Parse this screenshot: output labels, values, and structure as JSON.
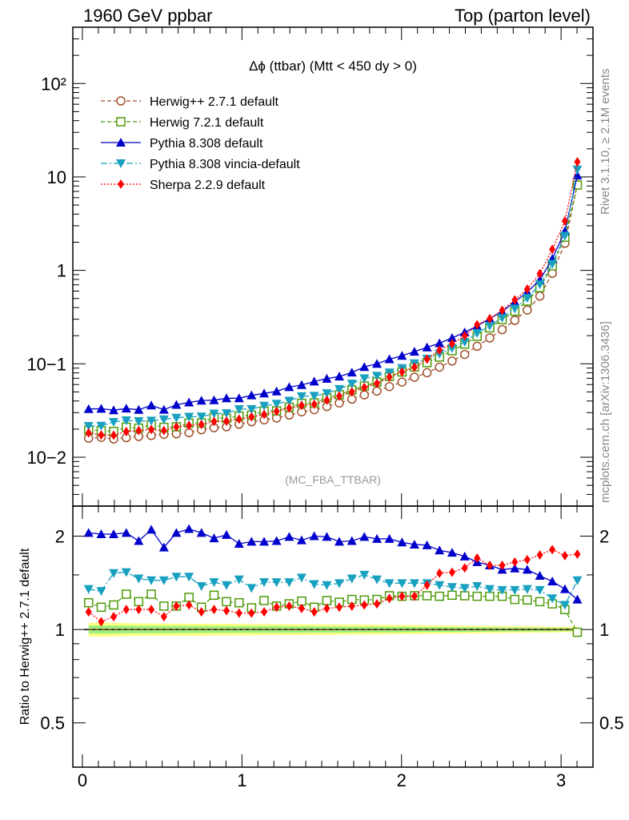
{
  "header": {
    "left": "1960 GeV ppbar",
    "right": "Top (parton level)"
  },
  "side_labels": {
    "rivet": "Rivet 3.1.10, ≥ 2.1M events",
    "mcplots": "mcplots.cern.ch [arXiv:1306.3436]"
  },
  "chart_data": [
    {
      "type": "scatter",
      "title": "Δϕ (ttbar) (Mtt < 450 dy > 0)",
      "watermark": "(MC_FBA_TTBAR)",
      "yscale": "log",
      "ylim": [
        0.003,
        400
      ],
      "xlim": [
        -0.06,
        3.2
      ],
      "ytick_labels": [
        "10−2",
        "10−1",
        "1",
        "10",
        "10²"
      ],
      "legend_placement": "top-left",
      "x": [
        0.039,
        0.118,
        0.196,
        0.275,
        0.353,
        0.432,
        0.511,
        0.589,
        0.668,
        0.746,
        0.825,
        0.903,
        0.982,
        1.06,
        1.139,
        1.217,
        1.296,
        1.374,
        1.453,
        1.532,
        1.61,
        1.689,
        1.767,
        1.846,
        1.924,
        2.003,
        2.081,
        2.16,
        2.238,
        2.317,
        2.396,
        2.474,
        2.553,
        2.631,
        2.71,
        2.788,
        2.867,
        2.945,
        3.024,
        3.102
      ],
      "series": [
        {
          "name": "Herwig++ 2.7.1 default",
          "color": "#a0522d",
          "marker": "circle-open",
          "line": "dashed",
          "values": [
            0.016,
            0.0163,
            0.0157,
            0.0162,
            0.0167,
            0.0171,
            0.0176,
            0.0178,
            0.0183,
            0.0197,
            0.0207,
            0.0212,
            0.0226,
            0.024,
            0.0251,
            0.0263,
            0.0283,
            0.0306,
            0.0323,
            0.0349,
            0.0381,
            0.0419,
            0.0465,
            0.0511,
            0.0571,
            0.0638,
            0.0718,
            0.0803,
            0.0921,
            0.107,
            0.126,
            0.154,
            0.189,
            0.232,
            0.292,
            0.376,
            0.53,
            0.93,
            1.95,
            8.3
          ]
        },
        {
          "name": "Herwig 7.2.1 default",
          "color": "#4e9a06",
          "marker": "square-open",
          "line": "dashed",
          "values": [
            0.0195,
            0.0192,
            0.0189,
            0.021,
            0.0205,
            0.0223,
            0.0209,
            0.0212,
            0.0232,
            0.0233,
            0.0267,
            0.0261,
            0.0276,
            0.0282,
            0.0312,
            0.0314,
            0.0343,
            0.0378,
            0.0382,
            0.0432,
            0.0467,
            0.0524,
            0.0578,
            0.0638,
            0.0733,
            0.0817,
            0.0924,
            0.103,
            0.118,
            0.138,
            0.162,
            0.197,
            0.242,
            0.297,
            0.365,
            0.469,
            0.653,
            1.12,
            2.26,
            8.2
          ]
        },
        {
          "name": "Pythia 8.308 default",
          "color": "#0000cc",
          "marker": "triangle-up",
          "line": "solid",
          "values": [
            0.0328,
            0.0331,
            0.0319,
            0.0332,
            0.0322,
            0.0359,
            0.0323,
            0.0364,
            0.0386,
            0.0404,
            0.0408,
            0.0428,
            0.0428,
            0.046,
            0.0482,
            0.0507,
            0.0563,
            0.0593,
            0.0647,
            0.0694,
            0.0731,
            0.0808,
            0.0924,
            0.1,
            0.112,
            0.122,
            0.135,
            0.15,
            0.166,
            0.189,
            0.217,
            0.254,
            0.305,
            0.362,
            0.46,
            0.587,
            0.789,
            1.33,
            2.63,
            10.4
          ]
        },
        {
          "name": "Pythia 8.308 vincia-default",
          "color": "#17a0bf",
          "marker": "triangle-down",
          "line": "dashdot",
          "values": [
            0.0216,
            0.0217,
            0.0238,
            0.0248,
            0.0243,
            0.0246,
            0.0254,
            0.0264,
            0.0271,
            0.0272,
            0.0293,
            0.0295,
            0.0327,
            0.0327,
            0.0355,
            0.0373,
            0.0402,
            0.0449,
            0.0453,
            0.0484,
            0.0536,
            0.0613,
            0.0698,
            0.0742,
            0.0806,
            0.0899,
            0.101,
            0.113,
            0.128,
            0.147,
            0.171,
            0.213,
            0.255,
            0.311,
            0.39,
            0.506,
            0.708,
            1.17,
            2.34,
            12.0
          ]
        },
        {
          "name": "Sherpa 2.2.9 default",
          "color": "#ff0000",
          "marker": "diamond",
          "line": "dotted",
          "values": [
            0.0182,
            0.0173,
            0.0172,
            0.0188,
            0.0193,
            0.0198,
            0.0193,
            0.0211,
            0.0219,
            0.0224,
            0.0241,
            0.0243,
            0.0256,
            0.027,
            0.0287,
            0.031,
            0.0336,
            0.0359,
            0.0369,
            0.0408,
            0.0451,
            0.05,
            0.0559,
            0.0617,
            0.0721,
            0.0817,
            0.0918,
            0.112,
            0.14,
            0.164,
            0.199,
            0.262,
            0.304,
            0.374,
            0.483,
            0.63,
            0.923,
            1.68,
            3.38,
            14.5
          ]
        }
      ]
    },
    {
      "type": "scatter",
      "ylabel": "Ratio to Herwig++ 2.7.1 default",
      "yscale": "log",
      "ylim": [
        0.36,
        2.5
      ],
      "xlim": [
        -0.06,
        3.2
      ],
      "xtick_labels": [
        "0",
        "1",
        "2",
        "3"
      ],
      "ytick_labels": [
        "0.5",
        "1",
        "2"
      ],
      "reference_line": 1,
      "x": [
        0.039,
        0.118,
        0.196,
        0.275,
        0.353,
        0.432,
        0.511,
        0.589,
        0.668,
        0.746,
        0.825,
        0.903,
        0.982,
        1.06,
        1.139,
        1.217,
        1.296,
        1.374,
        1.453,
        1.532,
        1.61,
        1.689,
        1.767,
        1.846,
        1.924,
        2.003,
        2.081,
        2.16,
        2.238,
        2.317,
        2.396,
        2.474,
        2.553,
        2.631,
        2.71,
        2.788,
        2.867,
        2.945,
        3.024,
        3.102
      ],
      "band": {
        "upper": [
          1.05,
          1.052,
          1.05,
          1.048,
          1.046,
          1.046,
          1.045,
          1.045,
          1.044,
          1.044,
          1.043,
          1.043,
          1.042,
          1.042,
          1.041,
          1.041,
          1.04,
          1.04,
          1.039,
          1.039,
          1.038,
          1.037,
          1.037,
          1.036,
          1.035,
          1.034,
          1.033,
          1.032,
          1.031,
          1.03,
          1.029,
          1.028,
          1.027,
          1.026,
          1.025,
          1.024,
          1.023,
          1.022,
          1.02,
          1.02
        ],
        "lower": [
          0.95,
          0.948,
          0.95,
          0.952,
          0.954,
          0.954,
          0.955,
          0.955,
          0.956,
          0.956,
          0.957,
          0.957,
          0.958,
          0.958,
          0.959,
          0.959,
          0.96,
          0.96,
          0.961,
          0.961,
          0.962,
          0.963,
          0.963,
          0.964,
          0.965,
          0.966,
          0.967,
          0.968,
          0.969,
          0.97,
          0.971,
          0.972,
          0.973,
          0.974,
          0.975,
          0.976,
          0.977,
          0.978,
          0.98,
          0.98
        ]
      },
      "series": [
        {
          "name": "Herwig++ 2.7.1 default",
          "color": "#a0522d",
          "values": [
            1,
            1,
            1,
            1,
            1,
            1,
            1,
            1,
            1,
            1,
            1,
            1,
            1,
            1,
            1,
            1,
            1,
            1,
            1,
            1,
            1,
            1,
            1,
            1,
            1,
            1,
            1,
            1,
            1,
            1,
            1,
            1,
            1,
            1,
            1,
            1,
            1,
            1,
            1,
            1
          ]
        },
        {
          "name": "Herwig 7.2.1 default",
          "color": "#4e9a06",
          "values": [
            1.22,
            1.18,
            1.2,
            1.3,
            1.23,
            1.3,
            1.19,
            1.19,
            1.27,
            1.18,
            1.29,
            1.23,
            1.22,
            1.175,
            1.24,
            1.19,
            1.21,
            1.235,
            1.18,
            1.24,
            1.225,
            1.25,
            1.245,
            1.25,
            1.285,
            1.28,
            1.285,
            1.285,
            1.28,
            1.29,
            1.285,
            1.28,
            1.28,
            1.28,
            1.25,
            1.245,
            1.23,
            1.21,
            1.16,
            0.98
          ]
        },
        {
          "name": "Pythia 8.308 default",
          "color": "#0000cc",
          "values": [
            2.05,
            2.03,
            2.03,
            2.05,
            1.93,
            2.1,
            1.84,
            2.05,
            2.11,
            2.05,
            1.97,
            2.02,
            1.89,
            1.92,
            1.92,
            1.93,
            1.99,
            1.94,
            2.0,
            1.99,
            1.92,
            1.93,
            1.99,
            1.96,
            1.96,
            1.91,
            1.88,
            1.87,
            1.8,
            1.77,
            1.72,
            1.65,
            1.61,
            1.56,
            1.575,
            1.56,
            1.49,
            1.43,
            1.35,
            1.25
          ]
        },
        {
          "name": "Pythia 8.308 vincia-default",
          "color": "#17a0bf",
          "values": [
            1.35,
            1.33,
            1.52,
            1.53,
            1.46,
            1.44,
            1.44,
            1.48,
            1.48,
            1.38,
            1.42,
            1.39,
            1.45,
            1.36,
            1.42,
            1.42,
            1.42,
            1.47,
            1.4,
            1.39,
            1.41,
            1.46,
            1.5,
            1.45,
            1.41,
            1.41,
            1.41,
            1.41,
            1.39,
            1.37,
            1.36,
            1.38,
            1.35,
            1.34,
            1.34,
            1.35,
            1.34,
            1.26,
            1.2,
            1.44
          ]
        },
        {
          "name": "Sherpa 2.2.9 default",
          "color": "#ff0000",
          "values": [
            1.14,
            1.06,
            1.1,
            1.16,
            1.16,
            1.16,
            1.1,
            1.19,
            1.2,
            1.14,
            1.16,
            1.15,
            1.13,
            1.13,
            1.14,
            1.18,
            1.19,
            1.17,
            1.14,
            1.17,
            1.18,
            1.19,
            1.2,
            1.21,
            1.26,
            1.28,
            1.28,
            1.39,
            1.52,
            1.53,
            1.58,
            1.7,
            1.61,
            1.61,
            1.65,
            1.68,
            1.74,
            1.81,
            1.73,
            1.75
          ]
        }
      ]
    }
  ]
}
